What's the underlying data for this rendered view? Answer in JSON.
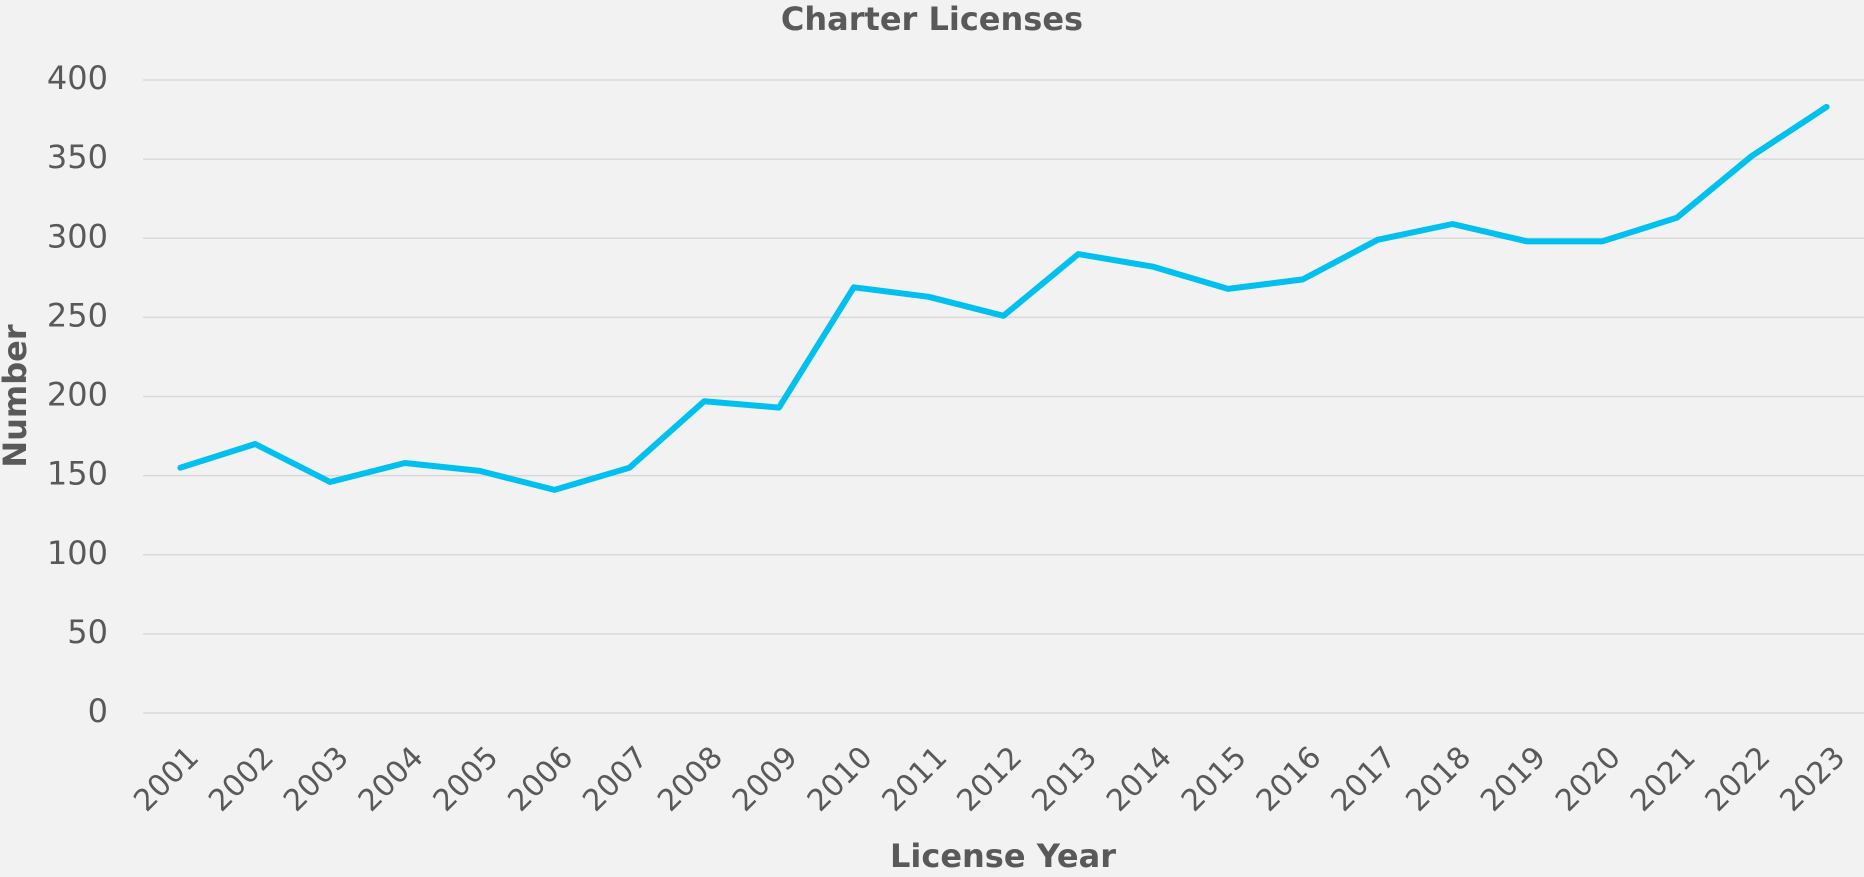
{
  "chart_data": {
    "type": "line",
    "title": "Charter Licenses",
    "x_label": "License Year",
    "y_label": "Number",
    "categories": [
      "2001",
      "2002",
      "2003",
      "2004",
      "2005",
      "2006",
      "2007",
      "2008",
      "2009",
      "2010",
      "2011",
      "2012",
      "2013",
      "2014",
      "2015",
      "2016",
      "2017",
      "2018",
      "2019",
      "2020",
      "2021",
      "2022",
      "2023"
    ],
    "series": [
      {
        "name": "Charter Licenses",
        "color": "#00c0f0",
        "values": [
          155,
          170,
          146,
          158,
          153,
          141,
          155,
          197,
          193,
          269,
          263,
          251,
          290,
          282,
          268,
          274,
          299,
          309,
          298,
          298,
          313,
          352,
          383
        ]
      }
    ],
    "ylim": [
      0,
      400
    ],
    "yticks": [
      0,
      50,
      100,
      150,
      200,
      250,
      300,
      350,
      400
    ],
    "grid": true,
    "legend": false
  }
}
